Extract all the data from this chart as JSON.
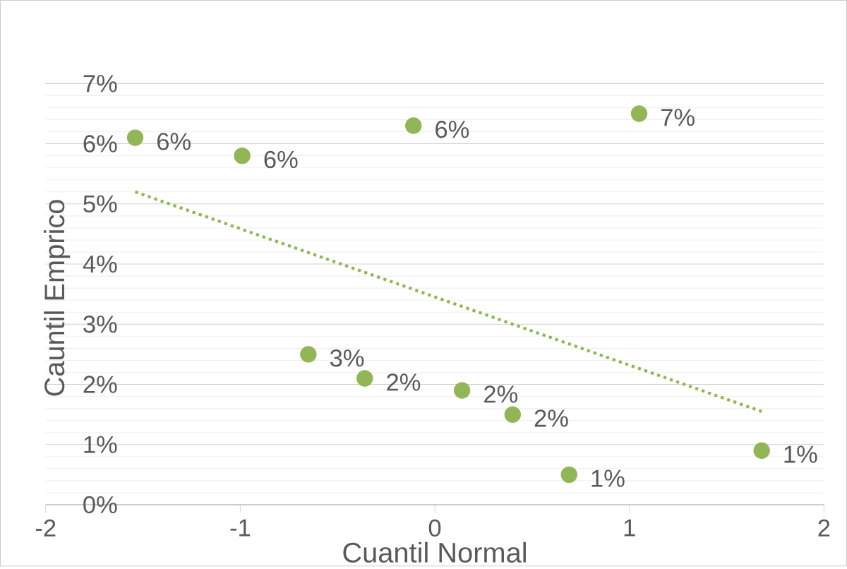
{
  "chart_data": {
    "type": "scatter",
    "xlabel": "Cuantil Normal",
    "ylabel": "Cauntil Emprico",
    "xlim": [
      -2,
      2
    ],
    "xticks": [
      -2,
      -1,
      0,
      1,
      2
    ],
    "ylim": [
      0,
      7
    ],
    "yticks": [
      {
        "value": 0,
        "label": "0%"
      },
      {
        "value": 1,
        "label": "1%"
      },
      {
        "value": 2,
        "label": "2%"
      },
      {
        "value": 3,
        "label": "3%"
      },
      {
        "value": 4,
        "label": "4%"
      },
      {
        "value": 5,
        "label": "5%"
      },
      {
        "value": 6,
        "label": "6%"
      },
      {
        "value": 7,
        "label": "7%"
      }
    ],
    "grid": "y",
    "marker": "circle",
    "series": [
      {
        "color": "#92b558",
        "x": [
          -1.54,
          -0.99,
          -0.65,
          -0.36,
          -0.11,
          0.14,
          0.4,
          0.69,
          1.05,
          1.68
        ],
        "values": [
          6.1,
          5.8,
          2.5,
          2.1,
          6.3,
          1.9,
          1.5,
          0.5,
          6.5,
          0.9
        ],
        "value_labels": [
          "6%",
          "6%",
          "3%",
          "2%",
          "6%",
          "2%",
          "2%",
          "1%",
          "7%",
          "1%"
        ]
      },
      {
        "type": "line",
        "color": "#92b558",
        "line_style": "dotted",
        "marker": "none",
        "x": [
          -1.54,
          1.68
        ],
        "values": [
          5.2,
          1.55
        ]
      }
    ]
  }
}
